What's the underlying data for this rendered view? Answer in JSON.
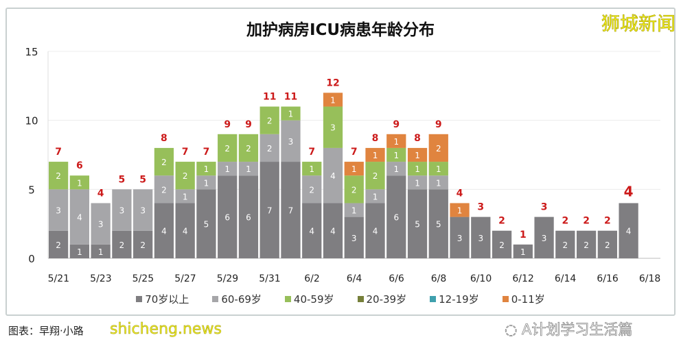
{
  "chart_data": {
    "type": "bar",
    "stacked": true,
    "title": "加护病房ICU病患年龄分布",
    "categories": [
      "5/21",
      "5/22",
      "5/23",
      "5/24",
      "5/25",
      "5/26",
      "5/27",
      "5/28",
      "5/29",
      "5/30",
      "5/31",
      "6/1",
      "6/2",
      "6/3",
      "6/4",
      "6/5",
      "6/6",
      "6/7",
      "6/8",
      "6/9",
      "6/10",
      "6/11",
      "6/12",
      "6/13",
      "6/14",
      "6/15",
      "6/16",
      "6/17",
      "6/18"
    ],
    "x_tick_labels": [
      "5/21",
      "5/23",
      "5/25",
      "5/27",
      "5/29",
      "5/31",
      "6/2",
      "6/4",
      "6/6",
      "6/8",
      "6/10",
      "6/12",
      "6/14",
      "6/16",
      "6/18"
    ],
    "y_ticks": [
      "0",
      "5",
      "10",
      "15"
    ],
    "ylim": [
      0,
      15
    ],
    "grid": true,
    "legend_position": "bottom",
    "series": [
      {
        "name": "70岁以上",
        "color": "#7f7e81",
        "values": [
          2,
          1,
          1,
          2,
          2,
          4,
          4,
          5,
          6,
          6,
          7,
          7,
          4,
          4,
          3,
          4,
          6,
          5,
          5,
          3,
          3,
          2,
          1,
          3,
          2,
          2,
          2,
          4,
          0
        ]
      },
      {
        "name": "60-69岁",
        "color": "#a6a6a9",
        "values": [
          3,
          4,
          3,
          3,
          3,
          2,
          1,
          1,
          1,
          1,
          2,
          3,
          2,
          4,
          1,
          1,
          1,
          1,
          1,
          0,
          0,
          0,
          0,
          0,
          0,
          0,
          0,
          0,
          0
        ]
      },
      {
        "name": "40-59岁",
        "color": "#97bf5a",
        "values": [
          2,
          1,
          0,
          0,
          0,
          2,
          2,
          1,
          2,
          2,
          2,
          1,
          1,
          3,
          2,
          2,
          1,
          1,
          1,
          0,
          0,
          0,
          0,
          0,
          0,
          0,
          0,
          0,
          0
        ]
      },
      {
        "name": "20-39岁",
        "color": "#76803a",
        "values": [
          0,
          0,
          0,
          0,
          0,
          0,
          0,
          0,
          0,
          0,
          0,
          0,
          0,
          0,
          0,
          0,
          0,
          0,
          0,
          0,
          0,
          0,
          0,
          0,
          0,
          0,
          0,
          0,
          0
        ]
      },
      {
        "name": "12-19岁",
        "color": "#3fa0ad",
        "values": [
          0,
          0,
          0,
          0,
          0,
          0,
          0,
          0,
          0,
          0,
          0,
          0,
          0,
          0,
          0,
          0,
          0,
          0,
          0,
          0,
          0,
          0,
          0,
          0,
          0,
          0,
          0,
          0,
          0
        ]
      },
      {
        "name": "0-11岁",
        "color": "#e0843f",
        "values": [
          0,
          0,
          0,
          0,
          0,
          0,
          0,
          0,
          0,
          0,
          0,
          0,
          0,
          1,
          1,
          1,
          1,
          1,
          2,
          1,
          0,
          0,
          0,
          0,
          0,
          0,
          0,
          0,
          0
        ]
      }
    ],
    "totals": [
      7,
      6,
      4,
      5,
      5,
      8,
      7,
      7,
      9,
      9,
      11,
      11,
      7,
      12,
      7,
      8,
      9,
      8,
      9,
      4,
      3,
      2,
      1,
      3,
      2,
      2,
      2,
      4,
      null
    ],
    "total_label_color": "#cc1a1a"
  },
  "logo": "狮城新闻",
  "wechat": "A计划学习生活篇",
  "credit": "图表：早翔·小路",
  "watermark": "shicheng.news"
}
